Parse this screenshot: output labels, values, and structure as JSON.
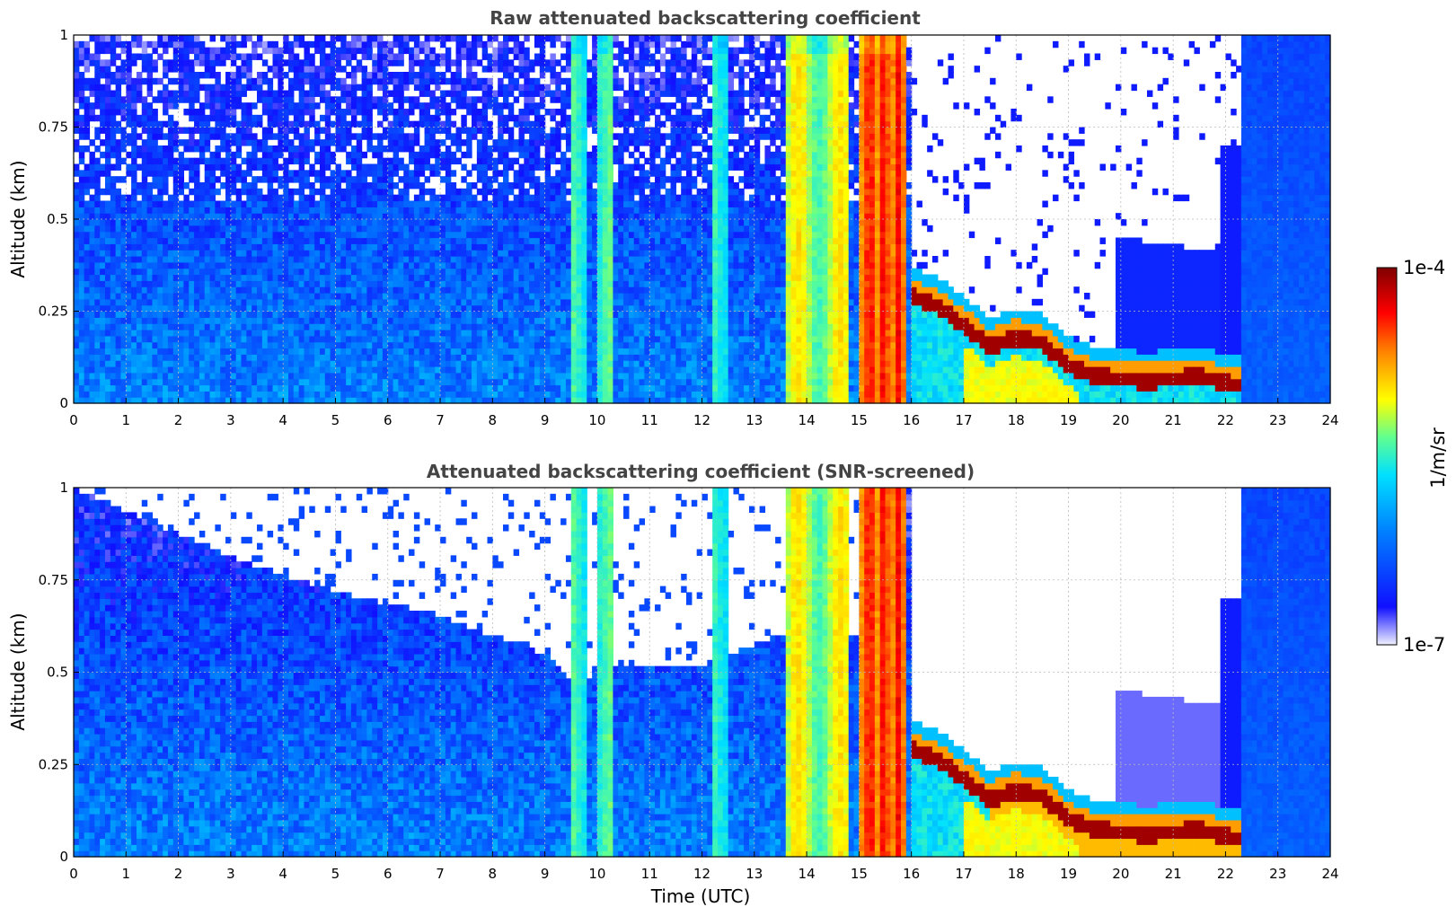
{
  "chart_data": [
    {
      "type": "heatmap",
      "title": "Raw attenuated backscattering coefficient",
      "xlabel": "",
      "ylabel": "Altitude (km)",
      "xlim": [
        0,
        24
      ],
      "ylim": [
        0,
        1
      ],
      "x_ticks": [
        "0",
        "1",
        "2",
        "3",
        "4",
        "5",
        "6",
        "7",
        "8",
        "9",
        "10",
        "11",
        "12",
        "13",
        "14",
        "15",
        "16",
        "17",
        "18",
        "19",
        "20",
        "21",
        "22",
        "23",
        "24"
      ],
      "y_ticks": [
        "0",
        "0.25",
        "0.5",
        "0.75",
        "1"
      ],
      "grid": true,
      "features": {
        "background_level": "low",
        "bright_columns_utc": [
          [
            9.55,
            9.75
          ],
          [
            10.05,
            10.3
          ],
          [
            12.25,
            12.45
          ],
          [
            13.6,
            14.8
          ],
          [
            15.0,
            15.9
          ]
        ],
        "cloud_base_km": [
          [
            16.0,
            0.27
          ],
          [
            16.5,
            0.24
          ],
          [
            17.0,
            0.19
          ],
          [
            17.5,
            0.13
          ],
          [
            18.0,
            0.16
          ],
          [
            18.5,
            0.14
          ],
          [
            19.0,
            0.08
          ],
          [
            19.5,
            0.05
          ],
          [
            20.5,
            0.04
          ],
          [
            21.5,
            0.05
          ],
          [
            22.1,
            0.03
          ]
        ],
        "clear_region_utc": [
          16.0,
          22.3
        ]
      }
    },
    {
      "type": "heatmap",
      "title": "Attenuated backscattering coefficient (SNR-screened)",
      "xlabel": "Time (UTC)",
      "ylabel": "Altitude (km)",
      "xlim": [
        0,
        24
      ],
      "ylim": [
        0,
        1
      ],
      "x_ticks": [
        "0",
        "1",
        "2",
        "3",
        "4",
        "5",
        "6",
        "7",
        "8",
        "9",
        "10",
        "11",
        "12",
        "13",
        "14",
        "15",
        "16",
        "17",
        "18",
        "19",
        "20",
        "21",
        "22",
        "23",
        "24"
      ],
      "y_ticks": [
        "0",
        "0.25",
        "0.5",
        "0.75",
        "1"
      ],
      "grid": true,
      "features": {
        "screened_top_km": [
          [
            0,
            1.0
          ],
          [
            3.2,
            0.8
          ],
          [
            5.0,
            0.72
          ],
          [
            7.0,
            0.65
          ],
          [
            9.0,
            0.55
          ],
          [
            9.5,
            0.47
          ],
          [
            10.5,
            0.52
          ],
          [
            12.0,
            0.52
          ],
          [
            13.5,
            0.6
          ]
        ],
        "cloud_base_km": [
          [
            16.0,
            0.27
          ],
          [
            16.5,
            0.24
          ],
          [
            17.0,
            0.19
          ],
          [
            17.5,
            0.13
          ],
          [
            18.0,
            0.16
          ],
          [
            18.5,
            0.14
          ],
          [
            19.0,
            0.08
          ],
          [
            19.5,
            0.05
          ],
          [
            20.5,
            0.04
          ],
          [
            21.5,
            0.05
          ],
          [
            22.1,
            0.03
          ]
        ]
      }
    }
  ],
  "colorbar": {
    "label": "1/m/sr",
    "max_label": "1e-4",
    "min_label": "1e-7",
    "colors": [
      "#f0f0ff",
      "#0000ff",
      "#0080ff",
      "#00e0ff",
      "#60ff90",
      "#ffff00",
      "#ff8000",
      "#ff0000",
      "#800000"
    ]
  }
}
